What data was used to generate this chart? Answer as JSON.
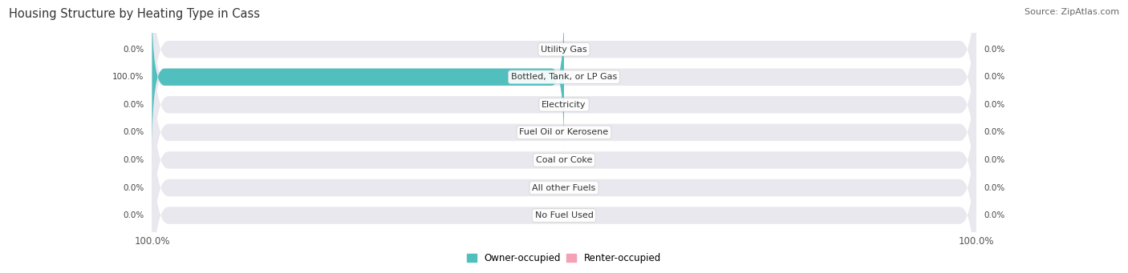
{
  "title": "Housing Structure by Heating Type in Cass",
  "source": "Source: ZipAtlas.com",
  "categories": [
    "Utility Gas",
    "Bottled, Tank, or LP Gas",
    "Electricity",
    "Fuel Oil or Kerosene",
    "Coal or Coke",
    "All other Fuels",
    "No Fuel Used"
  ],
  "owner_values": [
    0.0,
    100.0,
    0.0,
    0.0,
    0.0,
    0.0,
    0.0
  ],
  "renter_values": [
    0.0,
    0.0,
    0.0,
    0.0,
    0.0,
    0.0,
    0.0
  ],
  "owner_color": "#52bfbf",
  "renter_color": "#f4a0b5",
  "bar_bg_color": "#e8e8ee",
  "bar_height": 0.62,
  "title_fontsize": 10.5,
  "source_fontsize": 8,
  "label_fontsize": 7.5,
  "category_fontsize": 8,
  "legend_fontsize": 8.5
}
